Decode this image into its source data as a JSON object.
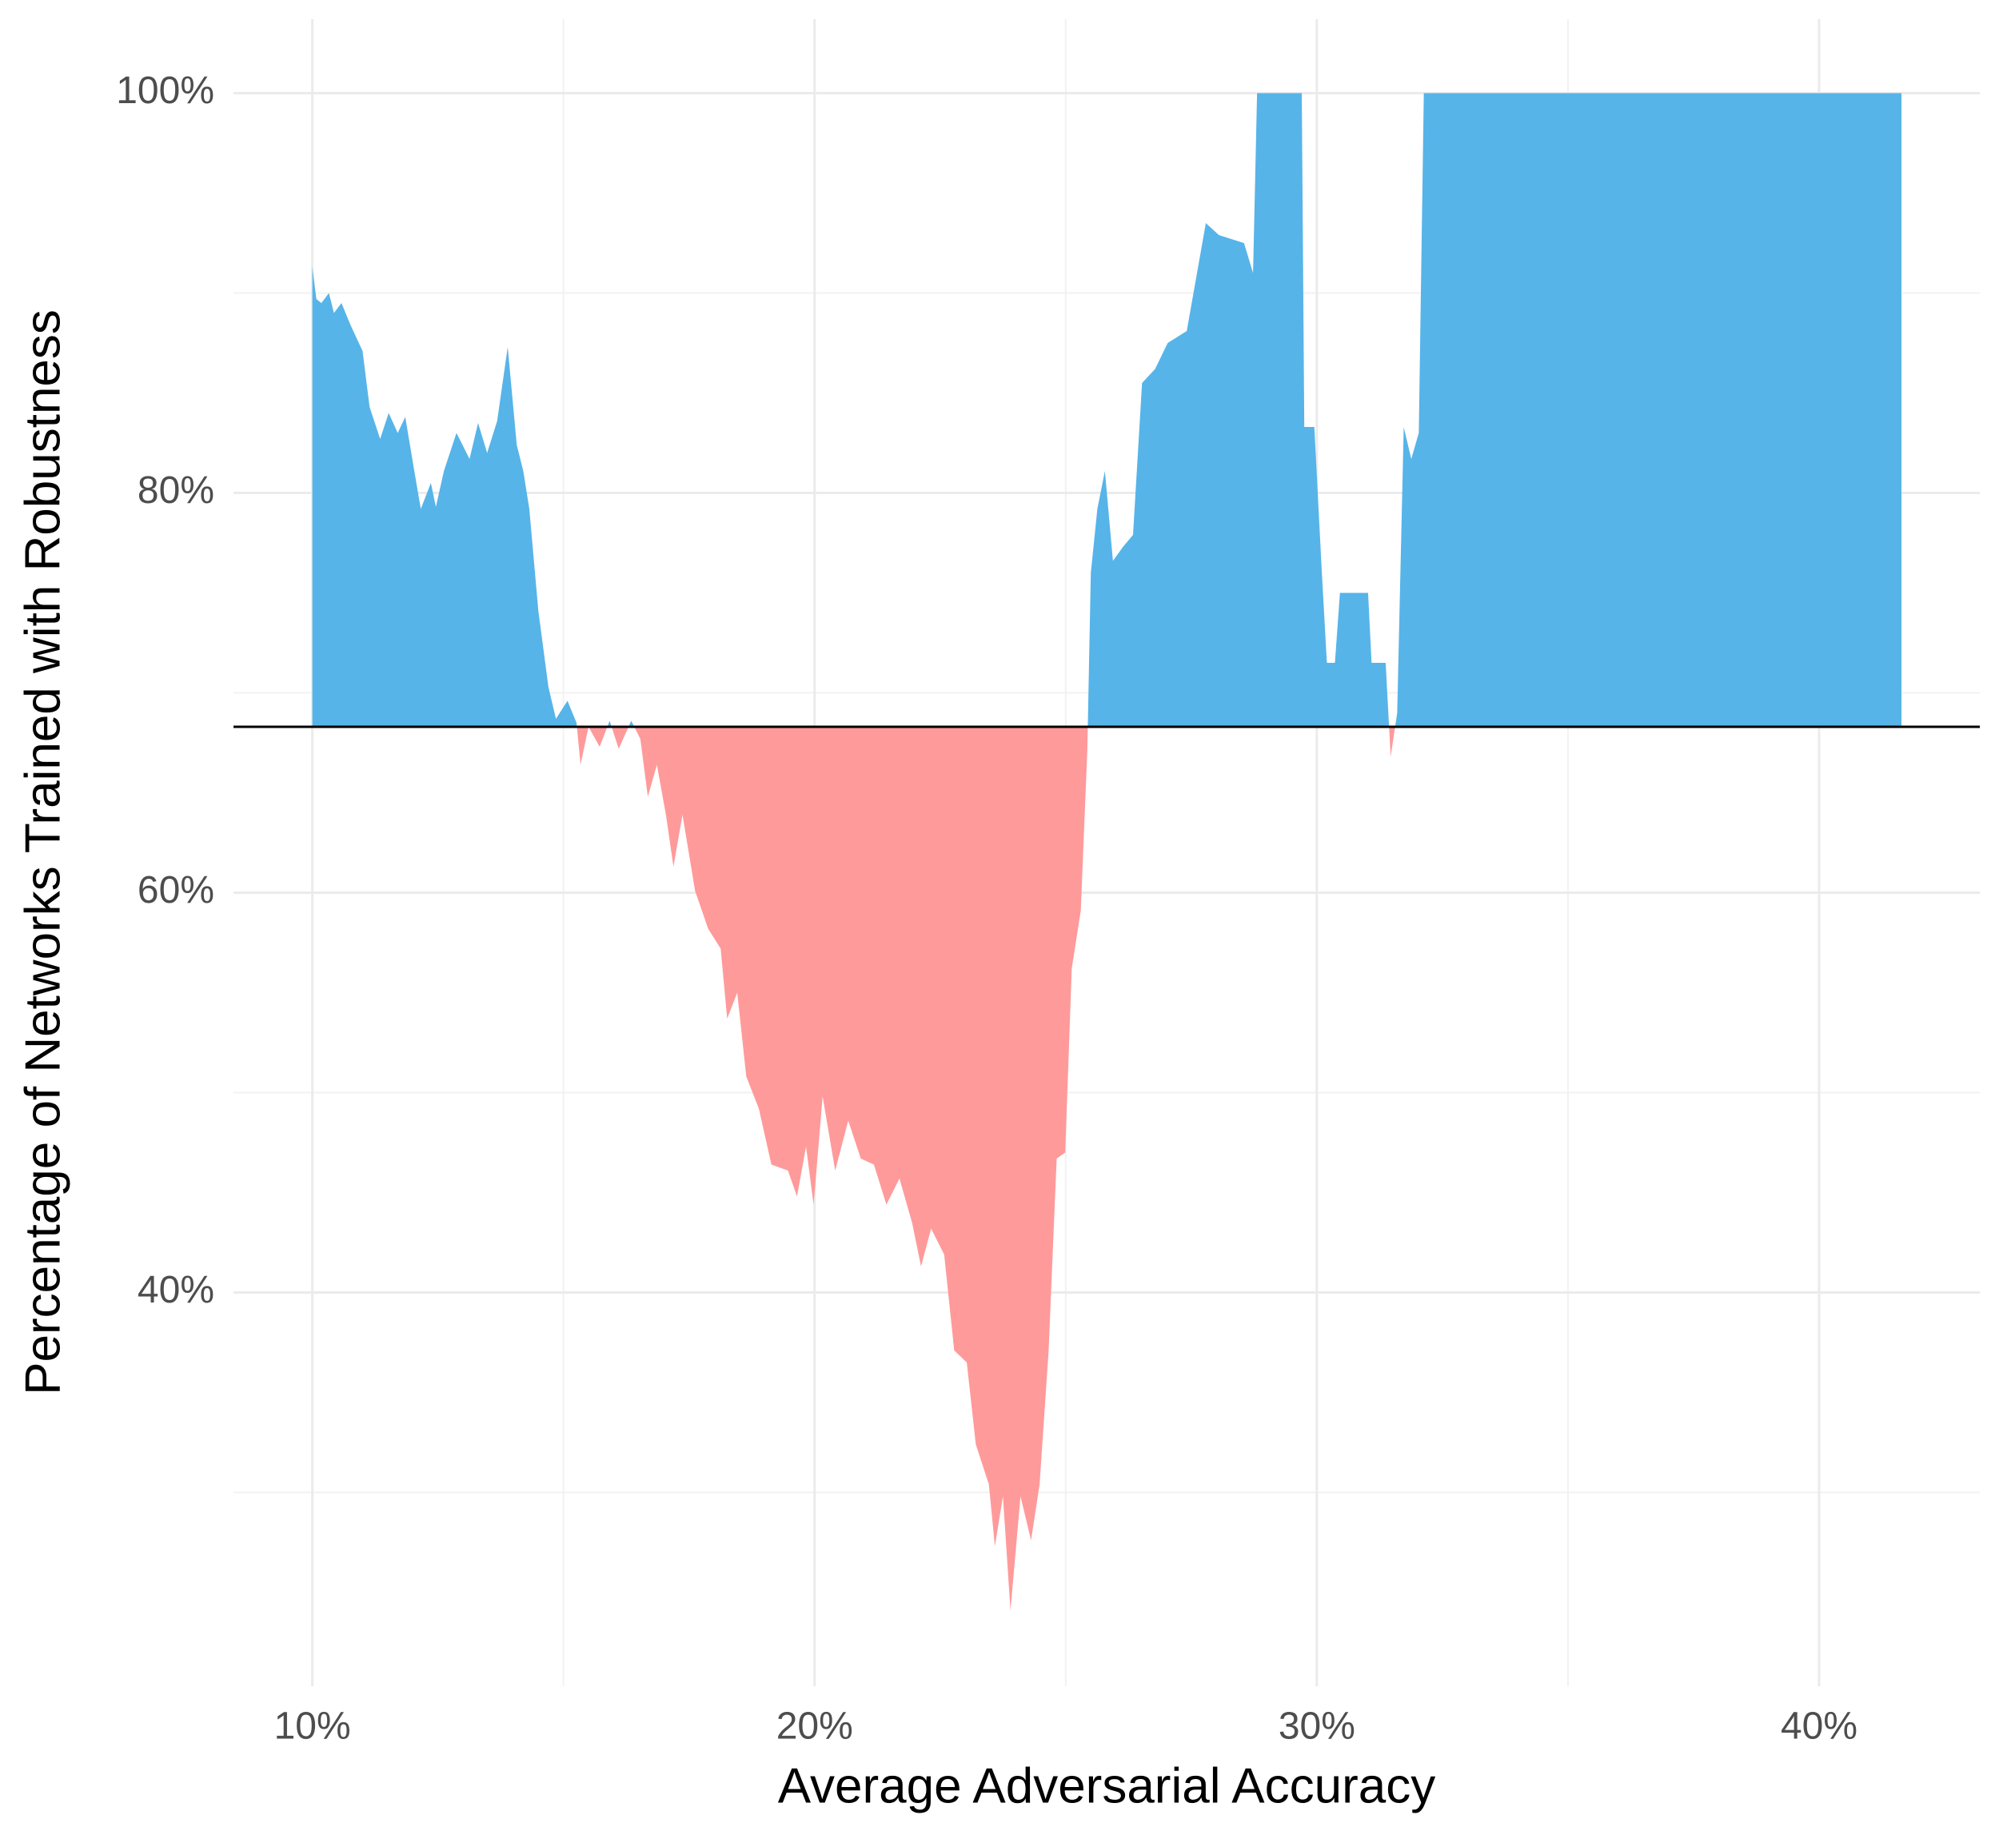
{
  "chart_data": {
    "type": "diverging-area",
    "x_label": "Average Adversarial Accuracy",
    "y_label": "Percentage of Networks Trained with Robustness",
    "xlim": [
      8.43,
      43.2
    ],
    "ylim": [
      20.3,
      103.7
    ],
    "xticks": [
      {
        "value": 10,
        "label": "10%"
      },
      {
        "value": 20,
        "label": "20%"
      },
      {
        "value": 30,
        "label": "30%"
      },
      {
        "value": 40,
        "label": "40%"
      }
    ],
    "yticks": [
      {
        "value": 40,
        "label": "40%"
      },
      {
        "value": 60,
        "label": "60%"
      },
      {
        "value": 80,
        "label": "80%"
      },
      {
        "value": 100,
        "label": "100%"
      }
    ],
    "x_minor_ticks": [
      15,
      25,
      35
    ],
    "y_minor_ticks": [
      30,
      50,
      70,
      90
    ],
    "grid": true,
    "baseline": 68.3,
    "above_color": "#56B4E9",
    "below_color": "#FF9A9A",
    "x": [
      10.0,
      10.08,
      10.18,
      10.33,
      10.43,
      10.58,
      10.76,
      11.0,
      11.14,
      11.35,
      11.52,
      11.7,
      11.85,
      12.03,
      12.16,
      12.36,
      12.46,
      12.62,
      12.87,
      13.13,
      13.3,
      13.48,
      13.68,
      13.89,
      14.07,
      14.2,
      14.32,
      14.5,
      14.7,
      14.85,
      15.08,
      15.26,
      15.34,
      15.5,
      15.72,
      15.92,
      16.1,
      16.35,
      16.53,
      16.68,
      16.86,
      17.04,
      17.19,
      17.37,
      17.62,
      17.88,
      18.13,
      18.26,
      18.46,
      18.64,
      18.89,
      19.14,
      19.47,
      19.65,
      19.83,
      19.98,
      20.16,
      20.41,
      20.67,
      20.92,
      21.18,
      21.43,
      21.69,
      21.94,
      22.12,
      22.32,
      22.58,
      22.78,
      23.03,
      23.21,
      23.47,
      23.59,
      23.75,
      23.9,
      24.1,
      24.31,
      24.48,
      24.66,
      24.82,
      24.99,
      25.12,
      25.3,
      25.43,
      25.5,
      25.63,
      25.78,
      25.94,
      26.14,
      26.34,
      26.52,
      26.78,
      27.03,
      27.41,
      27.79,
      28.05,
      28.55,
      28.73,
      28.81,
      29.7,
      29.75,
      29.95,
      30.1,
      30.2,
      30.36,
      30.46,
      31.02,
      31.09,
      31.37,
      31.47,
      31.6,
      31.73,
      31.88,
      32.03,
      32.13,
      41.64
    ],
    "y": [
      91.3,
      89.7,
      89.5,
      90.0,
      89.0,
      89.5,
      88.4,
      87.1,
      84.3,
      82.7,
      84.0,
      83.0,
      83.8,
      81.1,
      79.2,
      80.5,
      79.3,
      81.1,
      83.0,
      81.7,
      83.5,
      82.0,
      83.6,
      87.3,
      82.4,
      81.1,
      79.2,
      74.1,
      70.3,
      68.7,
      69.6,
      68.5,
      66.4,
      68.3,
      67.3,
      68.6,
      67.2,
      68.6,
      67.7,
      64.8,
      66.4,
      63.9,
      61.3,
      63.9,
      60.1,
      58.2,
      57.2,
      53.7,
      55.0,
      50.8,
      49.2,
      46.4,
      46.1,
      44.8,
      47.3,
      44.4,
      49.8,
      46.1,
      48.6,
      46.7,
      46.4,
      44.4,
      45.7,
      43.5,
      41.3,
      43.2,
      41.9,
      37.1,
      36.5,
      32.4,
      30.4,
      27.3,
      29.8,
      24.1,
      29.8,
      27.6,
      30.4,
      37.1,
      46.7,
      47.0,
      56.2,
      59.1,
      67.1,
      76.0,
      79.2,
      81.1,
      76.6,
      77.3,
      77.9,
      85.5,
      86.2,
      87.5,
      88.1,
      93.5,
      92.9,
      92.5,
      91.0,
      100,
      100,
      83.3,
      83.3,
      76.0,
      71.5,
      71.5,
      75.0,
      75.0,
      71.5,
      71.5,
      66.8,
      69.0,
      83.3,
      81.7,
      83.0,
      100,
      100
    ]
  }
}
